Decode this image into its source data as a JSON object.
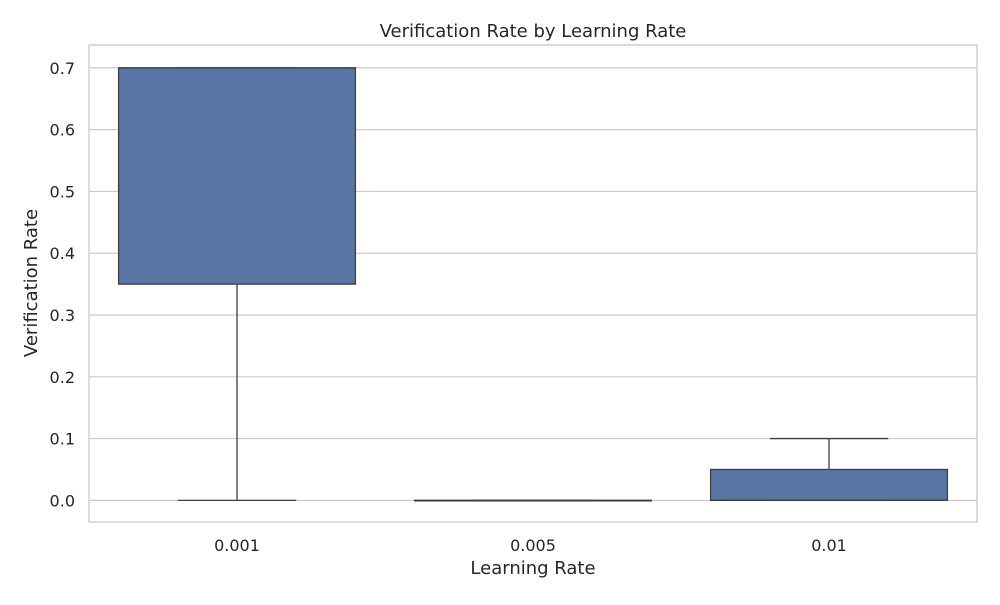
{
  "chart_data": {
    "type": "box",
    "title": "Verification Rate by Learning Rate",
    "xlabel": "Learning Rate",
    "ylabel": "Verification Rate",
    "categories": [
      "0.001",
      "0.005",
      "0.01"
    ],
    "boxes": [
      {
        "category": "0.001",
        "whislo": 0.0,
        "q1": 0.35,
        "median": 0.7,
        "q3": 0.7,
        "whishi": 0.7
      },
      {
        "category": "0.005",
        "whislo": 0.0,
        "q1": 0.0,
        "median": 0.0,
        "q3": 0.0,
        "whishi": 0.0
      },
      {
        "category": "0.01",
        "whislo": 0.0,
        "q1": 0.0,
        "median": 0.0,
        "q3": 0.05,
        "whishi": 0.1
      }
    ],
    "ylim": [
      -0.035,
      0.737
    ],
    "yticks": [
      "0.0",
      "0.1",
      "0.2",
      "0.3",
      "0.4",
      "0.5",
      "0.6",
      "0.7"
    ],
    "grid": true,
    "color": "#5875a4"
  }
}
